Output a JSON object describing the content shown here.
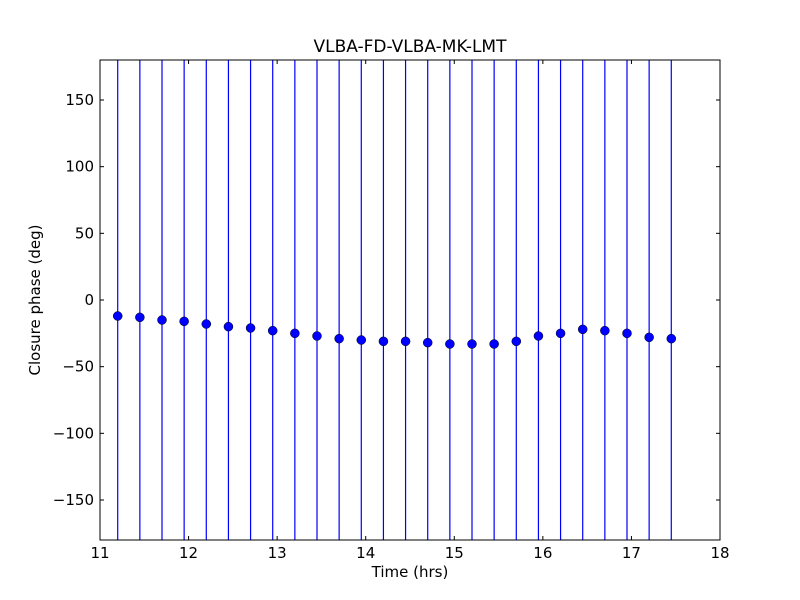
{
  "chart_data": {
    "type": "scatter",
    "title": "VLBA-FD-VLBA-MK-LMT",
    "xlabel": "Time (hrs)",
    "ylabel": "Closure phase (deg)",
    "xlim": [
      11,
      18
    ],
    "ylim": [
      -180,
      180
    ],
    "xticks": [
      11,
      12,
      13,
      14,
      15,
      16,
      17,
      18
    ],
    "yticks": [
      -150,
      -100,
      -50,
      0,
      50,
      100,
      150
    ],
    "xtick_labels": [
      "11",
      "12",
      "13",
      "14",
      "15",
      "16",
      "17",
      "18"
    ],
    "ytick_labels": [
      "−150",
      "−100",
      "−50",
      "0",
      "50",
      "100",
      "150"
    ],
    "grid": false,
    "colors": {
      "marker": "#0000ff",
      "errorbar": "#0000ff",
      "frame": "#000000"
    },
    "series": [
      {
        "x": [
          11.2,
          11.45,
          11.7,
          11.95,
          12.2,
          12.45,
          12.7,
          12.95,
          13.2,
          13.45,
          13.7,
          13.95,
          14.2,
          14.45,
          14.7,
          14.95,
          15.2,
          15.45,
          15.7,
          15.95,
          16.2,
          16.45,
          16.7,
          16.95,
          17.2,
          17.45
        ],
        "y": [
          -12,
          -13,
          -15,
          -16,
          -18,
          -20,
          -21,
          -23,
          -25,
          -27,
          -29,
          -30,
          -31,
          -31,
          -32,
          -33,
          -33,
          -33,
          -31,
          -27,
          -25,
          -22,
          -23,
          -25,
          -28,
          -29
        ],
        "error_extends_beyond_plot": true
      }
    ]
  }
}
